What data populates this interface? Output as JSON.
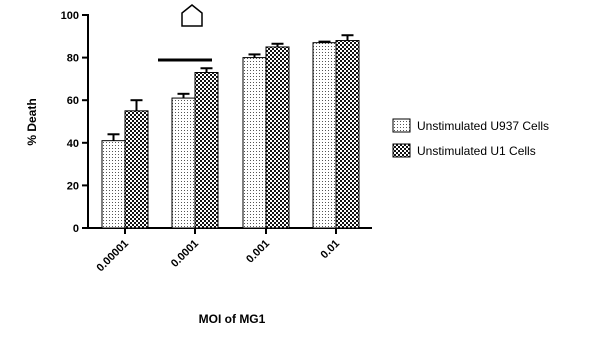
{
  "chart_data": {
    "type": "bar",
    "categories": [
      "0.00001",
      "0.0001",
      "0.001",
      "0.01"
    ],
    "series": [
      {
        "name": "Unstimulated U937 Cells",
        "values": [
          41,
          61,
          80,
          87
        ],
        "errors": [
          3,
          2,
          1.5,
          0.5
        ],
        "pattern": "dots"
      },
      {
        "name": "Unstimulated U1 Cells",
        "values": [
          55,
          73,
          85,
          88
        ],
        "errors": [
          5,
          2,
          1.5,
          2.5
        ],
        "pattern": "checker"
      }
    ],
    "xlabel": "MOI of MG1",
    "ylabel": "% Death",
    "ylim": [
      0,
      100
    ],
    "yticks": [
      0,
      20,
      40,
      60,
      80,
      100
    ],
    "legend_position": "right",
    "annotations": {
      "significance_bar_category": "0.0001",
      "marker_symbol": "open-pentagon-house"
    }
  }
}
